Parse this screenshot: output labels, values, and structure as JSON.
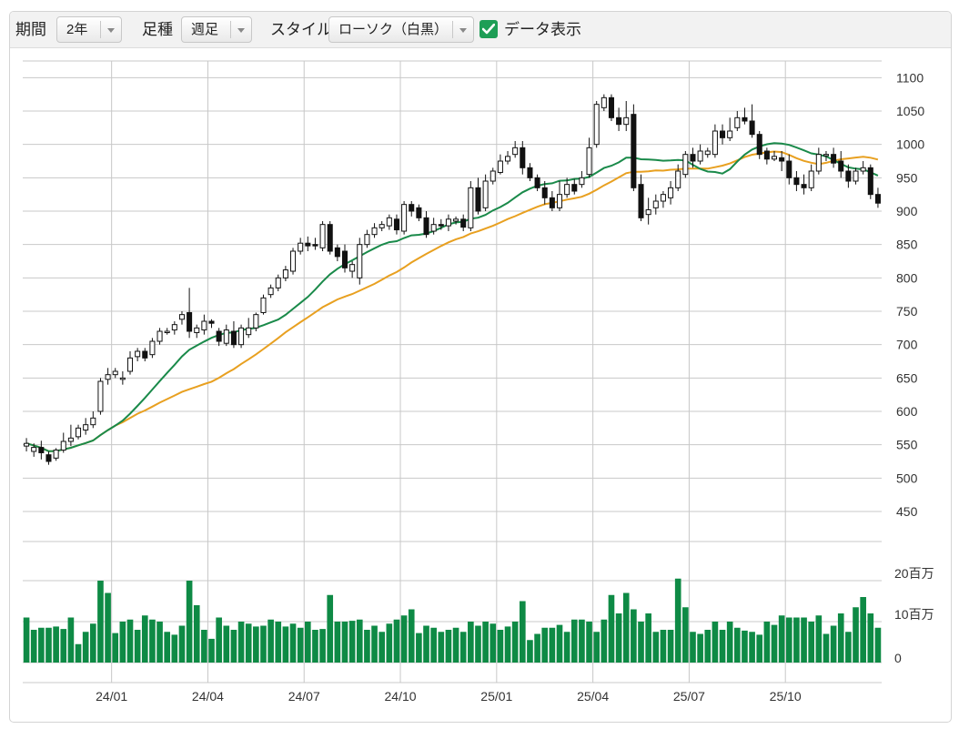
{
  "toolbar": {
    "period_label": "期間",
    "period_value": "2年",
    "interval_label": "足種",
    "interval_value": "週足",
    "style_label": "スタイル",
    "style_value": "ローソク（白黒）",
    "show_data_label": "データ表示",
    "show_data_checked": true
  },
  "colors": {
    "short_ma": "#1a8a4a",
    "long_ma": "#e8a020",
    "volume": "#0e8a45",
    "grid": "#c8c8c8",
    "candle_down": "#111111",
    "candle_up": "#ffffff"
  },
  "chart_data": {
    "type": "candlestick",
    "price_axis": {
      "ticks": [
        450,
        500,
        550,
        600,
        650,
        700,
        750,
        800,
        850,
        900,
        950,
        1000,
        1050,
        1100
      ],
      "range": [
        405,
        1125
      ]
    },
    "volume_axis": {
      "ticks": [
        0,
        10,
        20
      ],
      "tick_labels": [
        "0",
        "10百万",
        "20百万"
      ],
      "unit": "百万",
      "range": [
        0,
        20
      ]
    },
    "x_ticks": [
      "24/01",
      "24/04",
      "24/07",
      "24/10",
      "25/01",
      "25/04",
      "25/07",
      "25/10"
    ],
    "x_tick_index": [
      12,
      25,
      38,
      51,
      64,
      77,
      90,
      103
    ],
    "grid": true,
    "candles": [
      [
        548,
        552,
        540,
        560,
        11
      ],
      [
        540,
        546,
        532,
        552,
        8
      ],
      [
        546,
        538,
        528,
        556,
        8.5
      ],
      [
        535,
        525,
        520,
        540,
        8.5
      ],
      [
        530,
        542,
        526,
        545,
        8.8
      ],
      [
        542,
        555,
        538,
        568,
        8.2
      ],
      [
        555,
        560,
        548,
        580,
        11
      ],
      [
        562,
        575,
        558,
        580,
        4.5
      ],
      [
        572,
        580,
        565,
        590,
        7.5
      ],
      [
        580,
        590,
        575,
        600,
        9.5
      ],
      [
        600,
        645,
        595,
        650,
        20
      ],
      [
        648,
        655,
        640,
        665,
        17
      ],
      [
        655,
        660,
        650,
        665,
        7.2
      ],
      [
        650,
        650,
        640,
        660,
        10
      ],
      [
        660,
        680,
        655,
        690,
        10.5
      ],
      [
        682,
        690,
        675,
        695,
        8
      ],
      [
        690,
        680,
        675,
        695,
        11.5
      ],
      [
        685,
        705,
        680,
        710,
        10.5
      ],
      [
        705,
        720,
        700,
        725,
        10
      ],
      [
        720,
        720,
        715,
        725,
        7.5
      ],
      [
        722,
        730,
        715,
        735,
        6.8
      ],
      [
        738,
        745,
        730,
        750,
        9
      ],
      [
        748,
        720,
        710,
        785,
        20
      ],
      [
        718,
        725,
        710,
        730,
        14
      ],
      [
        722,
        735,
        715,
        745,
        8
      ],
      [
        735,
        732,
        725,
        738,
        5.8
      ],
      [
        720,
        705,
        698,
        725,
        11
      ],
      [
        702,
        722,
        698,
        730,
        9
      ],
      [
        720,
        700,
        695,
        735,
        8
      ],
      [
        700,
        725,
        695,
        730,
        10
      ],
      [
        715,
        725,
        710,
        740,
        9.5
      ],
      [
        725,
        745,
        720,
        748,
        8.8
      ],
      [
        748,
        770,
        745,
        775,
        9
      ],
      [
        775,
        785,
        770,
        790,
        10.5
      ],
      [
        785,
        800,
        780,
        805,
        10
      ],
      [
        800,
        812,
        795,
        818,
        8.8
      ],
      [
        810,
        840,
        805,
        845,
        9.5
      ],
      [
        840,
        852,
        835,
        860,
        8.5
      ],
      [
        852,
        848,
        840,
        862,
        10
      ],
      [
        850,
        848,
        842,
        860,
        8
      ],
      [
        845,
        880,
        840,
        885,
        8.2
      ],
      [
        880,
        840,
        835,
        885,
        16.5
      ],
      [
        845,
        832,
        825,
        850,
        10
      ],
      [
        840,
        815,
        808,
        850,
        10
      ],
      [
        810,
        820,
        800,
        825,
        10.2
      ],
      [
        800,
        850,
        790,
        860,
        10.5
      ],
      [
        850,
        865,
        845,
        872,
        8
      ],
      [
        865,
        875,
        860,
        882,
        9
      ],
      [
        875,
        880,
        870,
        885,
        7.5
      ],
      [
        878,
        890,
        872,
        895,
        9.5
      ],
      [
        888,
        872,
        865,
        895,
        10.5
      ],
      [
        870,
        910,
        865,
        915,
        11.5
      ],
      [
        910,
        900,
        892,
        915,
        13
      ],
      [
        905,
        890,
        885,
        910,
        7.2
      ],
      [
        890,
        865,
        860,
        900,
        9
      ],
      [
        870,
        880,
        865,
        890,
        8.5
      ],
      [
        880,
        878,
        872,
        888,
        7.5
      ],
      [
        878,
        888,
        870,
        895,
        8
      ],
      [
        885,
        888,
        880,
        892,
        8.5
      ],
      [
        888,
        876,
        870,
        895,
        7.5
      ],
      [
        875,
        935,
        870,
        945,
        10
      ],
      [
        935,
        900,
        895,
        950,
        9
      ],
      [
        905,
        945,
        900,
        955,
        10
      ],
      [
        945,
        960,
        940,
        965,
        9.5
      ],
      [
        958,
        975,
        955,
        985,
        8
      ],
      [
        975,
        982,
        970,
        990,
        8.8
      ],
      [
        985,
        995,
        980,
        1005,
        10
      ],
      [
        995,
        965,
        955,
        1005,
        15
      ],
      [
        965,
        950,
        945,
        972,
        5.5
      ],
      [
        950,
        935,
        930,
        955,
        7
      ],
      [
        935,
        920,
        910,
        945,
        8.5
      ],
      [
        920,
        905,
        900,
        930,
        8.5
      ],
      [
        905,
        925,
        900,
        945,
        9.2
      ],
      [
        925,
        940,
        920,
        950,
        7.5
      ],
      [
        940,
        930,
        925,
        948,
        10.5
      ],
      [
        940,
        950,
        935,
        960,
        10.5
      ],
      [
        955,
        995,
        950,
        1010,
        10
      ],
      [
        1000,
        1060,
        995,
        1065,
        7.5
      ],
      [
        1055,
        1070,
        1050,
        1075,
        10.5
      ],
      [
        1070,
        1040,
        1035,
        1075,
        16.5
      ],
      [
        1040,
        1030,
        1020,
        1055,
        12
      ],
      [
        1030,
        1040,
        1020,
        1065,
        17
      ],
      [
        1045,
        935,
        930,
        1060,
        13
      ],
      [
        940,
        890,
        885,
        955,
        10
      ],
      [
        895,
        902,
        880,
        920,
        12
      ],
      [
        905,
        915,
        895,
        925,
        7.5
      ],
      [
        915,
        925,
        905,
        930,
        8
      ],
      [
        920,
        935,
        910,
        945,
        8
      ],
      [
        935,
        960,
        930,
        970,
        20.5
      ],
      [
        955,
        985,
        950,
        990,
        13.5
      ],
      [
        985,
        975,
        965,
        995,
        7.5
      ],
      [
        975,
        990,
        970,
        1000,
        7
      ],
      [
        985,
        990,
        980,
        995,
        8
      ],
      [
        985,
        1020,
        980,
        1030,
        10
      ],
      [
        1020,
        1010,
        1000,
        1030,
        8
      ],
      [
        1010,
        1020,
        1005,
        1040,
        10
      ],
      [
        1025,
        1040,
        1020,
        1050,
        8.5
      ],
      [
        1040,
        1035,
        1030,
        1055,
        7.8
      ],
      [
        1035,
        1015,
        1010,
        1060,
        7.5
      ],
      [
        1015,
        985,
        978,
        1020,
        6.8
      ],
      [
        990,
        978,
        970,
        995,
        10
      ],
      [
        978,
        982,
        975,
        990,
        9.2
      ],
      [
        980,
        975,
        960,
        990,
        11.5
      ],
      [
        975,
        950,
        940,
        985,
        11
      ],
      [
        950,
        940,
        930,
        960,
        11
      ],
      [
        940,
        935,
        925,
        955,
        11
      ],
      [
        935,
        960,
        930,
        970,
        10
      ],
      [
        960,
        985,
        955,
        995,
        11.5
      ],
      [
        985,
        985,
        975,
        990,
        7
      ],
      [
        985,
        972,
        965,
        995,
        9
      ],
      [
        975,
        960,
        950,
        990,
        12
      ],
      [
        960,
        945,
        935,
        970,
        7.5
      ],
      [
        945,
        960,
        940,
        965,
        13.5
      ],
      [
        960,
        965,
        955,
        975,
        16
      ],
      [
        965,
        925,
        918,
        970,
        12
      ],
      [
        925,
        912,
        905,
        935,
        8.5
      ]
    ]
  }
}
